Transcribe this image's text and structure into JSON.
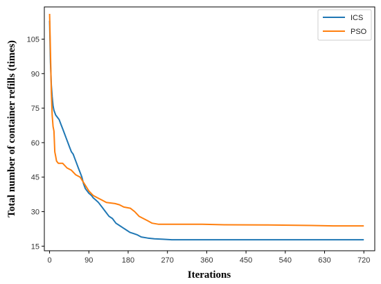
{
  "chart_data": {
    "type": "line",
    "title": "",
    "xlabel": "Iterations",
    "ylabel": "Total number of container refills (times)",
    "xlim": [
      -12,
      745
    ],
    "ylim": [
      13,
      119
    ],
    "xticks": [
      0,
      90,
      180,
      270,
      360,
      450,
      540,
      630,
      720
    ],
    "yticks": [
      15,
      30,
      45,
      60,
      75,
      90,
      105
    ],
    "grid": false,
    "legend_position": "top-right",
    "series": [
      {
        "name": "ICS",
        "color": "#1f77b4",
        "points": [
          [
            0,
            113
          ],
          [
            2,
            95
          ],
          [
            4,
            85
          ],
          [
            6,
            80
          ],
          [
            8,
            76
          ],
          [
            10,
            74
          ],
          [
            14,
            72
          ],
          [
            18,
            71
          ],
          [
            22,
            70
          ],
          [
            26,
            68
          ],
          [
            30,
            66
          ],
          [
            34,
            64
          ],
          [
            38,
            62
          ],
          [
            42,
            60
          ],
          [
            46,
            58
          ],
          [
            50,
            56
          ],
          [
            54,
            55
          ],
          [
            58,
            53
          ],
          [
            62,
            51
          ],
          [
            66,
            49
          ],
          [
            70,
            47
          ],
          [
            74,
            45
          ],
          [
            78,
            42
          ],
          [
            82,
            40
          ],
          [
            86,
            39
          ],
          [
            90,
            38
          ],
          [
            96,
            37
          ],
          [
            100,
            36
          ],
          [
            106,
            35
          ],
          [
            112,
            34
          ],
          [
            120,
            32
          ],
          [
            128,
            30
          ],
          [
            136,
            28
          ],
          [
            144,
            27
          ],
          [
            152,
            25
          ],
          [
            160,
            24
          ],
          [
            168,
            23
          ],
          [
            176,
            22
          ],
          [
            184,
            21
          ],
          [
            192,
            20.5
          ],
          [
            200,
            20
          ],
          [
            210,
            19
          ],
          [
            225,
            18.5
          ],
          [
            240,
            18.2
          ],
          [
            260,
            18
          ],
          [
            280,
            17.8
          ],
          [
            720,
            17.8
          ]
        ]
      },
      {
        "name": "PSO",
        "color": "#ff7f0e",
        "points": [
          [
            0,
            116
          ],
          [
            2,
            100
          ],
          [
            4,
            82
          ],
          [
            6,
            72
          ],
          [
            8,
            67
          ],
          [
            10,
            65
          ],
          [
            12,
            56
          ],
          [
            14,
            54
          ],
          [
            16,
            52
          ],
          [
            20,
            51
          ],
          [
            30,
            51
          ],
          [
            40,
            49
          ],
          [
            50,
            48
          ],
          [
            60,
            46
          ],
          [
            70,
            45
          ],
          [
            80,
            42
          ],
          [
            90,
            39
          ],
          [
            100,
            37
          ],
          [
            110,
            36
          ],
          [
            120,
            35
          ],
          [
            130,
            34
          ],
          [
            150,
            33.5
          ],
          [
            160,
            33
          ],
          [
            170,
            32
          ],
          [
            185,
            31.5
          ],
          [
            195,
            30
          ],
          [
            205,
            28
          ],
          [
            215,
            27
          ],
          [
            225,
            26
          ],
          [
            235,
            25
          ],
          [
            250,
            24.5
          ],
          [
            300,
            24.5
          ],
          [
            350,
            24.5
          ],
          [
            400,
            24.3
          ],
          [
            500,
            24.2
          ],
          [
            600,
            24
          ],
          [
            650,
            23.8
          ],
          [
            720,
            23.8
          ]
        ]
      }
    ]
  }
}
